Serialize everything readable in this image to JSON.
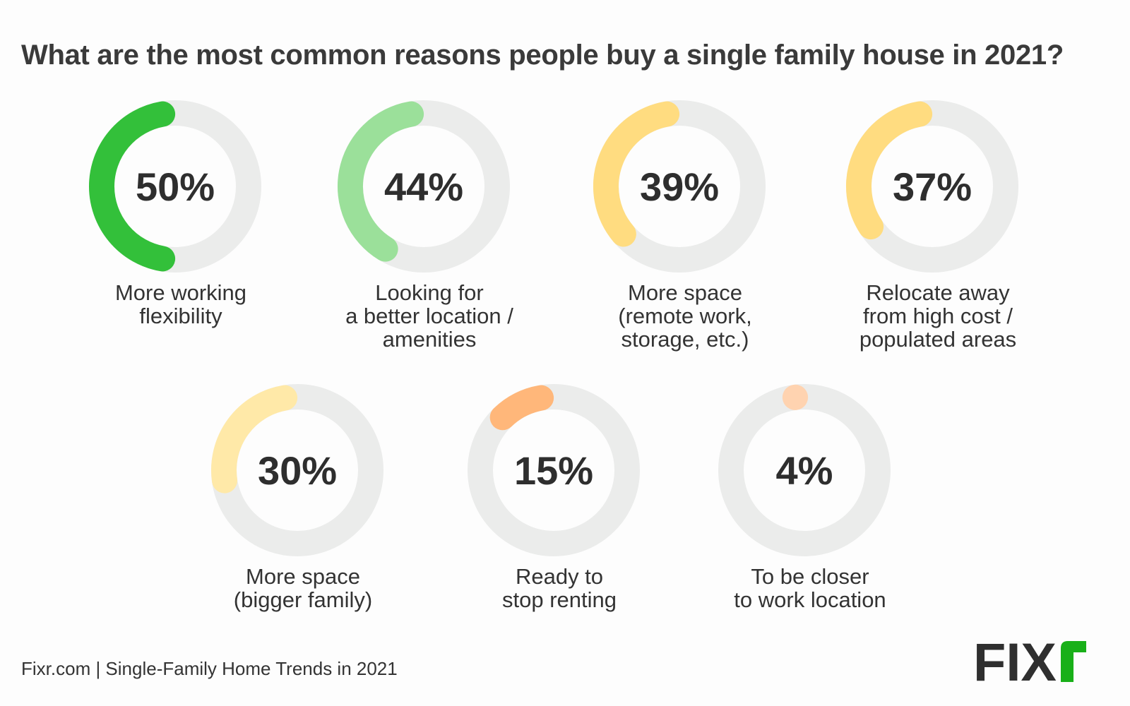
{
  "title": "What are the most common reasons people buy a single family house in 2021?",
  "footer": "Fixr.com | Single-Family Home Trends in 2021",
  "logo": "FIXR",
  "track_color": "#ebeceb",
  "chart_data": {
    "type": "donut",
    "title": "What are the most common reasons people buy a single family house in 2021?",
    "items": [
      {
        "label": "More working\nflexibility",
        "value": 50,
        "display": "50%",
        "color": "#33c03a"
      },
      {
        "label": "Looking for\na better location /\namenities",
        "value": 44,
        "display": "44%",
        "color": "#9be09a"
      },
      {
        "label": "More space\n(remote work,\nstorage, etc.)",
        "value": 39,
        "display": "39%",
        "color": "#ffdc80"
      },
      {
        "label": "Relocate away\nfrom high cost /\npopulated areas",
        "value": 37,
        "display": "37%",
        "color": "#ffdc80"
      },
      {
        "label": "More space\n(bigger family)",
        "value": 30,
        "display": "30%",
        "color": "#ffe9a8"
      },
      {
        "label": "Ready to\nstop renting",
        "value": 15,
        "display": "15%",
        "color": "#ffb77a"
      },
      {
        "label": "To be closer\nto work location",
        "value": 4,
        "display": "4%",
        "color": "#ffd3b0"
      }
    ]
  }
}
